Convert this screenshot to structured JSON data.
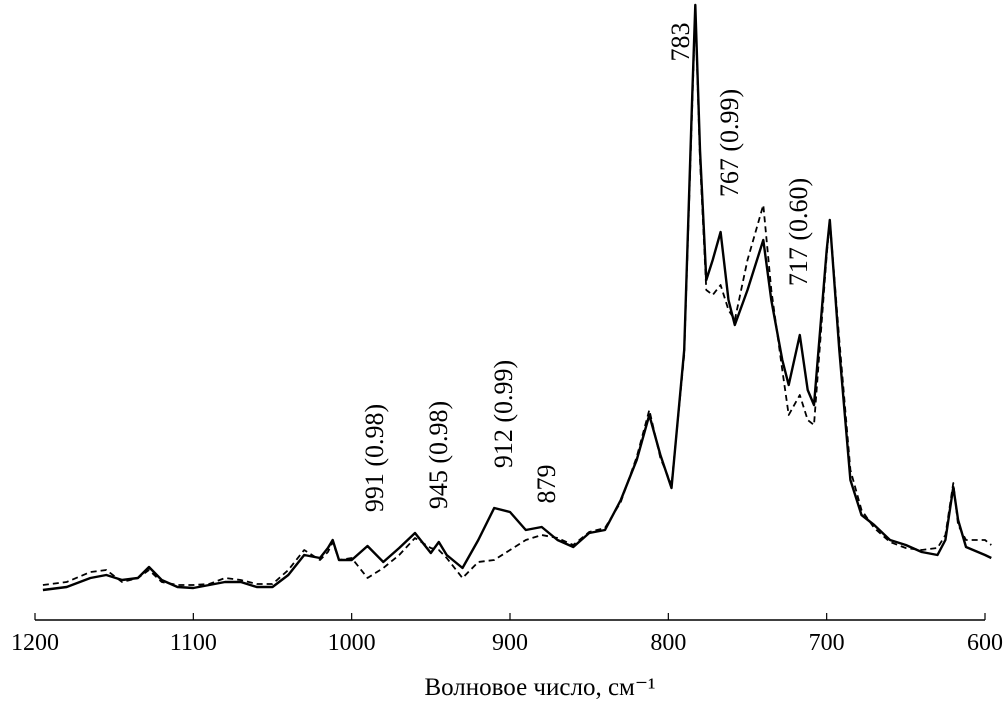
{
  "chart_data": {
    "type": "line",
    "x_label": "Волновое число, см⁻¹",
    "x": [
      1195,
      1180,
      1165,
      1155,
      1145,
      1135,
      1128,
      1120,
      1110,
      1100,
      1090,
      1080,
      1070,
      1060,
      1050,
      1040,
      1030,
      1020,
      1015,
      1012,
      1008,
      1000,
      990,
      980,
      970,
      960,
      950,
      945,
      940,
      930,
      920,
      910,
      900,
      890,
      880,
      870,
      860,
      850,
      840,
      830,
      820,
      812,
      805,
      798,
      790,
      785,
      783,
      780,
      776,
      772,
      767,
      762,
      758,
      750,
      740,
      735,
      728,
      724,
      717,
      712,
      708,
      700,
      698,
      692,
      685,
      678,
      670,
      660,
      650,
      640,
      630,
      625,
      620,
      617,
      612,
      600,
      596
    ],
    "series": [
      {
        "color": "#000000",
        "dash": false,
        "values": [
          30,
          33,
          42,
          45,
          40,
          42,
          53,
          40,
          33,
          32,
          35,
          38,
          38,
          33,
          33,
          45,
          65,
          62,
          72,
          80,
          60,
          60,
          74,
          58,
          72,
          87,
          67,
          78,
          65,
          52,
          80,
          112,
          108,
          90,
          93,
          80,
          73,
          87,
          90,
          120,
          160,
          205,
          165,
          132,
          270,
          520,
          615,
          470,
          340,
          360,
          388,
          320,
          295,
          330,
          380,
          320,
          260,
          235,
          285,
          230,
          215,
          370,
          400,
          270,
          140,
          105,
          95,
          80,
          75,
          68,
          65,
          80,
          133,
          100,
          73,
          65,
          62
        ]
      },
      {
        "color": "#000000",
        "dash": true,
        "values": [
          35,
          38,
          48,
          50,
          38,
          42,
          50,
          38,
          35,
          35,
          36,
          42,
          40,
          36,
          36,
          50,
          70,
          60,
          68,
          78,
          60,
          62,
          42,
          52,
          65,
          82,
          72,
          70,
          62,
          42,
          58,
          60,
          70,
          80,
          85,
          82,
          75,
          88,
          92,
          118,
          163,
          210,
          162,
          135,
          265,
          510,
          610,
          460,
          330,
          325,
          335,
          310,
          300,
          360,
          415,
          330,
          250,
          205,
          225,
          200,
          195,
          365,
          400,
          280,
          150,
          110,
          92,
          78,
          72,
          70,
          72,
          85,
          137,
          95,
          80,
          80,
          75
        ]
      }
    ],
    "xlim": [
      1200,
      600
    ],
    "ylim": [
      0,
      615
    ],
    "xticks": [
      1200,
      1100,
      1000,
      900,
      800,
      700,
      600
    ],
    "annotations": [
      "783",
      "767 (0.99)",
      "717 (0.60)",
      "991 (0.98)",
      "945 (0.98)",
      "912 (0.99)",
      "879"
    ]
  }
}
